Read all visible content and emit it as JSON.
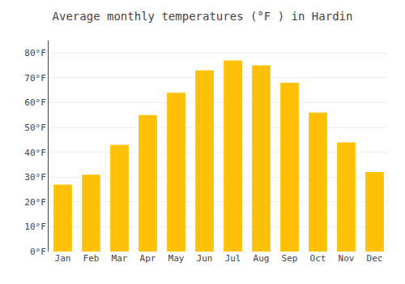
{
  "chart_data": {
    "type": "bar",
    "title": "Average monthly temperatures (°F ) in Hardin",
    "categories": [
      "Jan",
      "Feb",
      "Mar",
      "Apr",
      "May",
      "Jun",
      "Jul",
      "Aug",
      "Sep",
      "Oct",
      "Nov",
      "Dec"
    ],
    "values": [
      27,
      31,
      43,
      55,
      64,
      73,
      77,
      75,
      68,
      56,
      44,
      32
    ],
    "color": "#FFC107",
    "ylim": [
      0,
      85
    ],
    "yticks": [
      {
        "value": 0,
        "label": "0°F"
      },
      {
        "value": 10,
        "label": "10°F"
      },
      {
        "value": 20,
        "label": "20°F"
      },
      {
        "value": 30,
        "label": "30°F"
      },
      {
        "value": 40,
        "label": "40°F"
      },
      {
        "value": 50,
        "label": "50°F"
      },
      {
        "value": 60,
        "label": "60°F"
      },
      {
        "value": 70,
        "label": "70°F"
      },
      {
        "value": 80,
        "label": "80°F"
      }
    ],
    "grid": true
  }
}
